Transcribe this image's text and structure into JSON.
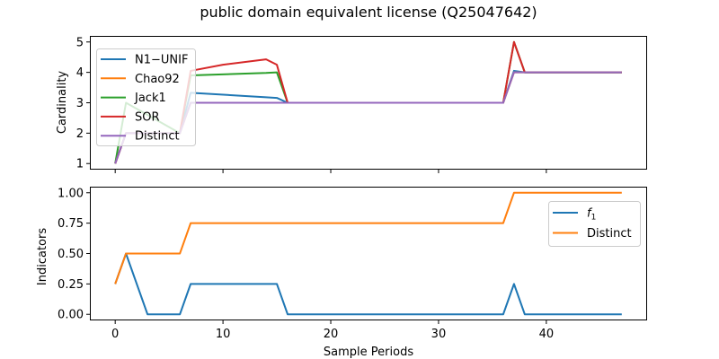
{
  "chart_data": {
    "title": "public domain equivalent license (Q25047642)",
    "xlabel": "Sample Periods",
    "x_ticks": [
      0,
      10,
      20,
      30,
      40
    ],
    "xlim": [
      -2.35,
      49.35
    ],
    "subplots": [
      {
        "type": "line",
        "ylabel": "Cardinality",
        "ylim": [
          0.8,
          5.2
        ],
        "y_ticks": [
          1,
          2,
          3,
          4,
          5
        ],
        "y_tick_labels": [
          "1",
          "2",
          "3",
          "4",
          "5"
        ],
        "legend_location": "upper-left",
        "series": [
          {
            "name": "N1−UNIF",
            "color": "#1f77b4",
            "points": [
              [
                0,
                1.0
              ],
              [
                1,
                2.0
              ],
              [
                6,
                2.0
              ],
              [
                7,
                3.33
              ],
              [
                14,
                3.18
              ],
              [
                15,
                3.16
              ],
              [
                16,
                3.0
              ],
              [
                36,
                3.0
              ],
              [
                37,
                4.05
              ],
              [
                38,
                4.0
              ],
              [
                47,
                4.0
              ]
            ]
          },
          {
            "name": "Chao92",
            "color": "#ff7f0e",
            "points": [
              [
                0,
                1.0
              ],
              [
                1,
                2.0
              ],
              [
                6,
                2.0
              ],
              [
                7,
                3.0
              ],
              [
                16,
                3.0
              ],
              [
                36,
                3.0
              ],
              [
                37,
                4.0
              ],
              [
                47,
                4.0
              ]
            ]
          },
          {
            "name": "Jack1",
            "color": "#2ca02c",
            "points": [
              [
                0,
                1.0
              ],
              [
                1,
                3.0
              ],
              [
                2,
                2.8
              ],
              [
                6,
                2.0
              ],
              [
                7,
                3.9
              ],
              [
                14,
                3.98
              ],
              [
                15,
                4.0
              ],
              [
                16,
                3.0
              ],
              [
                36,
                3.0
              ],
              [
                37,
                5.0
              ],
              [
                38,
                4.0
              ],
              [
                47,
                4.0
              ]
            ]
          },
          {
            "name": "SOR",
            "color": "#d62728",
            "points": [
              [
                0,
                1.0
              ],
              [
                1,
                2.0
              ],
              [
                6,
                2.0
              ],
              [
                7,
                4.05
              ],
              [
                10,
                4.25
              ],
              [
                14,
                4.43
              ],
              [
                15,
                4.25
              ],
              [
                16,
                3.0
              ],
              [
                36,
                3.0
              ],
              [
                37,
                5.0
              ],
              [
                38,
                4.0
              ],
              [
                47,
                4.0
              ]
            ]
          },
          {
            "name": "Distinct",
            "color": "#9467bd",
            "points": [
              [
                0,
                1.0
              ],
              [
                1,
                2.0
              ],
              [
                6,
                2.0
              ],
              [
                7,
                3.0
              ],
              [
                16,
                3.0
              ],
              [
                36,
                3.0
              ],
              [
                37,
                4.0
              ],
              [
                47,
                4.0
              ]
            ]
          }
        ]
      },
      {
        "type": "line",
        "ylabel": "Indicators",
        "ylim": [
          -0.05,
          1.05
        ],
        "y_ticks": [
          0,
          0.25,
          0.5,
          0.75,
          1.0
        ],
        "y_tick_labels": [
          "0.00",
          "0.25",
          "0.50",
          "0.75",
          "1.00"
        ],
        "legend_location": "upper-right",
        "series": [
          {
            "name": "f1",
            "name_base": "f",
            "name_subscript": "1",
            "color": "#1f77b4",
            "points": [
              [
                0,
                0.25
              ],
              [
                1,
                0.5
              ],
              [
                3,
                0.0
              ],
              [
                6,
                0.0
              ],
              [
                7,
                0.25
              ],
              [
                15,
                0.25
              ],
              [
                16,
                0.0
              ],
              [
                36,
                0.0
              ],
              [
                37,
                0.25
              ],
              [
                38,
                0.0
              ],
              [
                47,
                0.0
              ]
            ]
          },
          {
            "name": "Distinct",
            "color": "#ff7f0e",
            "points": [
              [
                0,
                0.25
              ],
              [
                1,
                0.5
              ],
              [
                6,
                0.5
              ],
              [
                7,
                0.75
              ],
              [
                36,
                0.75
              ],
              [
                37,
                1.0
              ],
              [
                47,
                1.0
              ]
            ]
          }
        ]
      }
    ]
  }
}
